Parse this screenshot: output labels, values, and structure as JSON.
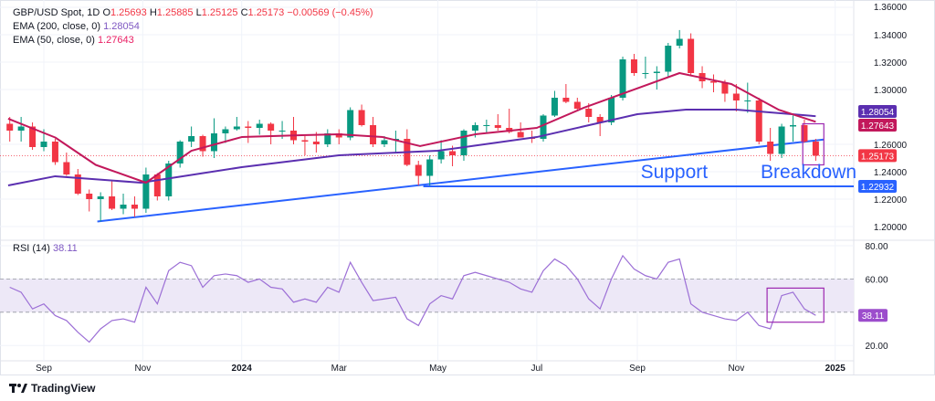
{
  "header": {
    "symbol": "GBP/USD Spot, 1D",
    "open_label": "O",
    "open": "1.25693",
    "high_label": "H",
    "high": "1.25885",
    "low_label": "L",
    "low": "1.25125",
    "close_label": "C",
    "close": "1.25173",
    "change": "−0.00569 (−0.45%)",
    "ema200_label": "EMA (200, close, 0)",
    "ema200_value": "1.28054",
    "ema50_label": "EMA (50, close, 0)",
    "ema50_value": "1.27643",
    "rsi_label": "RSI (14)",
    "rsi_value": "38.11"
  },
  "branding": {
    "logo_text": "TradingView"
  },
  "colors": {
    "up": "#089981",
    "down": "#f23645",
    "ema200": "#5b2fb0",
    "ema50": "#c2185b",
    "rsi": "#9c6fd6",
    "trendline": "#2962ff",
    "box": "#9c27b0"
  },
  "chart_data": [
    {
      "type": "candlestick",
      "title": "GBP/USD Spot, 1D",
      "ylim": [
        1.19,
        1.36
      ],
      "y_ticks": [
        "1.36000",
        "1.34000",
        "1.32000",
        "1.30000",
        "1.26000",
        "1.24000",
        "1.22000",
        "1.20000"
      ],
      "y_tick_values": [
        1.36,
        1.34,
        1.32,
        1.3,
        1.26,
        1.24,
        1.22,
        1.2
      ],
      "x_ticks": [
        {
          "label": "Sep",
          "date": "2023-09-01"
        },
        {
          "label": "Nov",
          "date": "2023-11-01"
        },
        {
          "label": "2024",
          "date": "2024-01-01"
        },
        {
          "label": "Mar",
          "date": "2024-03-01"
        },
        {
          "label": "May",
          "date": "2024-05-01"
        },
        {
          "label": "Jul",
          "date": "2024-07-01"
        },
        {
          "label": "Sep",
          "date": "2024-09-01"
        },
        {
          "label": "Nov",
          "date": "2024-11-01"
        },
        {
          "label": "2025",
          "date": "2025-01-01"
        }
      ],
      "candles": [
        [
          "2023-08-11",
          1.275,
          1.28,
          1.262,
          1.27
        ],
        [
          "2023-08-18",
          1.27,
          1.28,
          1.262,
          1.273
        ],
        [
          "2023-08-25",
          1.273,
          1.276,
          1.256,
          1.258
        ],
        [
          "2023-09-01",
          1.258,
          1.271,
          1.255,
          1.262
        ],
        [
          "2023-09-08",
          1.262,
          1.264,
          1.245,
          1.247
        ],
        [
          "2023-09-15",
          1.247,
          1.254,
          1.237,
          1.238
        ],
        [
          "2023-09-22",
          1.238,
          1.242,
          1.223,
          1.224
        ],
        [
          "2023-09-29",
          1.224,
          1.227,
          1.211,
          1.22
        ],
        [
          "2023-10-06",
          1.22,
          1.225,
          1.2037,
          1.222
        ],
        [
          "2023-10-13",
          1.222,
          1.234,
          1.212,
          1.213
        ],
        [
          "2023-10-20",
          1.213,
          1.224,
          1.209,
          1.216
        ],
        [
          "2023-10-27",
          1.216,
          1.222,
          1.207,
          1.213
        ],
        [
          "2023-11-03",
          1.213,
          1.243,
          1.21,
          1.238
        ],
        [
          "2023-11-10",
          1.238,
          1.239,
          1.219,
          1.222
        ],
        [
          "2023-11-17",
          1.222,
          1.248,
          1.219,
          1.246
        ],
        [
          "2023-11-24",
          1.246,
          1.263,
          1.243,
          1.262
        ],
        [
          "2023-12-01",
          1.262,
          1.273,
          1.258,
          1.266
        ],
        [
          "2023-12-08",
          1.266,
          1.267,
          1.251,
          1.255
        ],
        [
          "2023-12-15",
          1.255,
          1.279,
          1.25,
          1.268
        ],
        [
          "2023-12-22",
          1.268,
          1.273,
          1.261,
          1.271
        ],
        [
          "2023-12-29",
          1.271,
          1.28,
          1.27,
          1.273
        ],
        [
          "2024-01-05",
          1.273,
          1.277,
          1.261,
          1.272
        ],
        [
          "2024-01-12",
          1.272,
          1.278,
          1.267,
          1.275
        ],
        [
          "2024-01-19",
          1.275,
          1.276,
          1.26,
          1.27
        ],
        [
          "2024-01-26",
          1.27,
          1.277,
          1.264,
          1.27
        ],
        [
          "2024-02-02",
          1.27,
          1.28,
          1.26,
          1.263
        ],
        [
          "2024-02-09",
          1.263,
          1.266,
          1.252,
          1.262
        ],
        [
          "2024-02-16",
          1.262,
          1.269,
          1.254,
          1.26
        ],
        [
          "2024-02-23",
          1.26,
          1.271,
          1.258,
          1.268
        ],
        [
          "2024-03-01",
          1.268,
          1.271,
          1.26,
          1.265
        ],
        [
          "2024-03-08",
          1.265,
          1.287,
          1.263,
          1.285
        ],
        [
          "2024-03-15",
          1.285,
          1.289,
          1.273,
          1.274
        ],
        [
          "2024-03-22",
          1.274,
          1.28,
          1.258,
          1.26
        ],
        [
          "2024-03-29",
          1.26,
          1.266,
          1.258,
          1.263
        ],
        [
          "2024-04-05",
          1.263,
          1.27,
          1.254,
          1.264
        ],
        [
          "2024-04-12",
          1.264,
          1.271,
          1.244,
          1.245
        ],
        [
          "2024-04-19",
          1.245,
          1.248,
          1.23,
          1.237
        ],
        [
          "2024-04-26",
          1.237,
          1.252,
          1.23,
          1.249
        ],
        [
          "2024-05-03",
          1.249,
          1.263,
          1.246,
          1.255
        ],
        [
          "2024-05-10",
          1.255,
          1.259,
          1.244,
          1.252
        ],
        [
          "2024-05-17",
          1.252,
          1.271,
          1.248,
          1.27
        ],
        [
          "2024-05-24",
          1.27,
          1.276,
          1.265,
          1.274
        ],
        [
          "2024-05-31",
          1.274,
          1.278,
          1.268,
          1.274
        ],
        [
          "2024-06-07",
          1.274,
          1.282,
          1.27,
          1.272
        ],
        [
          "2024-06-14",
          1.272,
          1.286,
          1.268,
          1.269
        ],
        [
          "2024-06-21",
          1.269,
          1.276,
          1.265,
          1.265
        ],
        [
          "2024-06-28",
          1.265,
          1.27,
          1.261,
          1.264
        ],
        [
          "2024-07-05",
          1.264,
          1.282,
          1.262,
          1.281
        ],
        [
          "2024-07-12",
          1.281,
          1.299,
          1.28,
          1.294
        ],
        [
          "2024-07-19",
          1.294,
          1.304,
          1.29,
          1.291
        ],
        [
          "2024-07-26",
          1.291,
          1.294,
          1.285,
          1.286
        ],
        [
          "2024-08-02",
          1.286,
          1.29,
          1.276,
          1.28
        ],
        [
          "2024-08-09",
          1.28,
          1.282,
          1.266,
          1.276
        ],
        [
          "2024-08-16",
          1.276,
          1.296,
          1.274,
          1.294
        ],
        [
          "2024-08-23",
          1.294,
          1.324,
          1.292,
          1.322
        ],
        [
          "2024-08-30",
          1.322,
          1.326,
          1.31,
          1.312
        ],
        [
          "2024-09-06",
          1.312,
          1.324,
          1.308,
          1.312
        ],
        [
          "2024-09-13",
          1.312,
          1.317,
          1.3,
          1.313
        ],
        [
          "2024-09-20",
          1.313,
          1.334,
          1.309,
          1.332
        ],
        [
          "2024-09-27",
          1.332,
          1.3434,
          1.33,
          1.337
        ],
        [
          "2024-10-04",
          1.337,
          1.341,
          1.31,
          1.312
        ],
        [
          "2024-10-11",
          1.312,
          1.317,
          1.301,
          1.306
        ],
        [
          "2024-10-18",
          1.306,
          1.311,
          1.298,
          1.305
        ],
        [
          "2024-10-25",
          1.305,
          1.307,
          1.291,
          1.297
        ],
        [
          "2024-11-01",
          1.297,
          1.304,
          1.284,
          1.292
        ],
        [
          "2024-11-08",
          1.292,
          1.305,
          1.283,
          1.292
        ],
        [
          "2024-11-15",
          1.292,
          1.294,
          1.26,
          1.262
        ],
        [
          "2024-11-22",
          1.262,
          1.272,
          1.248,
          1.253
        ],
        [
          "2024-11-29",
          1.253,
          1.275,
          1.25,
          1.273
        ],
        [
          "2024-12-06",
          1.273,
          1.281,
          1.262,
          1.274
        ],
        [
          "2024-12-13",
          1.274,
          1.278,
          1.261,
          1.262
        ],
        [
          "2024-12-20",
          1.262,
          1.264,
          1.248,
          1.25173
        ]
      ],
      "ema200": [
        [
          "2023-08-10",
          1.23
        ],
        [
          "2023-09-08",
          1.2367
        ],
        [
          "2023-10-31",
          1.232
        ],
        [
          "2024-01-01",
          1.2433
        ],
        [
          "2024-03-01",
          1.252
        ],
        [
          "2024-05-01",
          1.2553
        ],
        [
          "2024-07-01",
          1.2653
        ],
        [
          "2024-09-01",
          1.282
        ],
        [
          "2024-10-01",
          1.2853
        ],
        [
          "2024-11-01",
          1.2853
        ],
        [
          "2024-12-20",
          1.28054
        ]
      ],
      "ema50": [
        [
          "2023-08-10",
          1.2787
        ],
        [
          "2023-09-08",
          1.265
        ],
        [
          "2023-10-03",
          1.245
        ],
        [
          "2023-11-03",
          1.232
        ],
        [
          "2023-12-01",
          1.2553
        ],
        [
          "2024-01-01",
          1.2653
        ],
        [
          "2024-02-07",
          1.2667
        ],
        [
          "2024-03-01",
          1.2673
        ],
        [
          "2024-03-28",
          1.2653
        ],
        [
          "2024-04-20",
          1.2587
        ],
        [
          "2024-05-24",
          1.2673
        ],
        [
          "2024-07-01",
          1.272
        ],
        [
          "2024-07-30",
          1.2867
        ],
        [
          "2024-08-27",
          1.2987
        ],
        [
          "2024-09-27",
          1.312
        ],
        [
          "2024-10-29",
          1.304
        ],
        [
          "2024-11-27",
          1.2853
        ],
        [
          "2024-12-20",
          1.27643
        ]
      ],
      "last_price": 1.25173,
      "price_tags": [
        {
          "label": "1.28054",
          "value": 1.28054,
          "color": "#5b2fb0"
        },
        {
          "label": "1.27643",
          "value": 1.27643,
          "color": "#c2185b"
        },
        {
          "label": "1.25173",
          "value": 1.25173,
          "color": "#f23645"
        },
        {
          "label": "1.22932",
          "value": 1.22932,
          "color": "#2962ff"
        }
      ],
      "annotations": {
        "support_trendline": {
          "from": [
            "2023-10-04",
            1.2037
          ],
          "to": [
            "2024-12-25",
            1.2635
          ]
        },
        "horizontal_support": {
          "from_date": "2024-04-22",
          "value": 1.22932
        },
        "breakdown_box": {
          "from": "2024-12-12",
          "to": "2024-12-25",
          "top": 1.275,
          "bottom": 1.245
        },
        "support_text": {
          "text": "Support",
          "date": "2024-09-03",
          "value": 1.24
        },
        "breakdown_text": {
          "text": "Breakdown",
          "date": "2024-11-16",
          "value": 1.24
        }
      }
    },
    {
      "type": "line",
      "title": "RSI (14)",
      "ylim": [
        10,
        82
      ],
      "y_ticks": [
        "80.00",
        "60.00",
        "20.00"
      ],
      "y_tick_values": [
        80,
        60,
        20
      ],
      "band": [
        40,
        60
      ],
      "rsi": [
        55,
        52,
        42,
        45,
        38,
        35,
        28,
        22,
        30,
        35,
        36,
        34,
        55,
        45,
        65,
        70,
        68,
        55,
        62,
        63,
        62,
        58,
        60,
        55,
        54,
        46,
        48,
        46,
        55,
        52,
        70,
        58,
        47,
        48,
        49,
        36,
        32,
        45,
        50,
        48,
        62,
        64,
        62,
        60,
        58,
        54,
        52,
        65,
        72,
        68,
        60,
        48,
        42,
        60,
        74,
        66,
        62,
        60,
        70,
        72,
        45,
        40,
        38,
        36,
        35,
        40,
        32,
        30,
        50,
        52,
        42,
        38.11
      ],
      "last_value": "38.11",
      "box": {
        "from": "2024-11-20",
        "to": "2024-12-25",
        "top": 54.5,
        "bottom": 34
      }
    }
  ]
}
